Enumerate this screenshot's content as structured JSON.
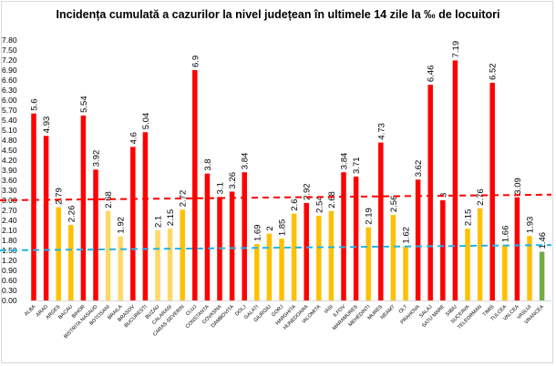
{
  "chart_data": {
    "type": "bar",
    "title": "Incidența cumulată a cazurilor la nivel județean în ultimele 14 zile la ‰ de locuitori",
    "xlabel": "",
    "ylabel": "",
    "ylim": [
      0,
      7.8
    ],
    "ytick_step": 0.3,
    "grid": false,
    "legend": "none",
    "categories": [
      "ALBA",
      "ARAD",
      "ARGES",
      "BACAU",
      "BIHOR",
      "BISTRITA NASAUD",
      "BOTOSANI",
      "BRAILA",
      "BRASOV",
      "BUCURESTI",
      "BUZAU",
      "CALARASI",
      "CARAS-SEVERIN",
      "CLUJ",
      "CONSTANTA",
      "COVASNA",
      "DAMBOVITA",
      "DOLJ",
      "GALATI",
      "GIURGIU",
      "GORJ",
      "HARGHITA",
      "HUNEDOARA",
      "IALOMITA",
      "IASI",
      "ILFOV",
      "MARAMURES",
      "MEHEDINTI",
      "MURES",
      "NEAMT",
      "OLT",
      "PRAHOVA",
      "SALAJ",
      "SATU MARE",
      "SIBIU",
      "SUCEAVA",
      "TELEORMAN",
      "TIMIS",
      "TULCEA",
      "VALCEA",
      "VASLUI",
      "VRANCEA"
    ],
    "values": [
      5.6,
      4.93,
      2.79,
      2.26,
      5.54,
      3.92,
      2.68,
      1.92,
      4.6,
      5.04,
      2.1,
      2.15,
      2.72,
      6.9,
      3.8,
      3.1,
      3.26,
      3.84,
      1.69,
      2,
      1.85,
      2.6,
      2.92,
      2.54,
      2.68,
      3.84,
      3.71,
      2.19,
      4.73,
      2.56,
      1.62,
      3.62,
      6.46,
      3,
      7.19,
      2.15,
      2.76,
      6.52,
      1.66,
      3.09,
      1.93,
      1.46
    ],
    "bar_colors": [
      "red",
      "red",
      "yellow",
      "yellow",
      "red",
      "red",
      "lightyellow",
      "lightyellow",
      "red",
      "red",
      "lightyellow",
      "lightyellow",
      "yellow",
      "red",
      "red",
      "red",
      "red",
      "red",
      "yellow",
      "yellow",
      "yellow",
      "yellow",
      "red",
      "yellow",
      "yellow",
      "red",
      "red",
      "yellow",
      "red",
      "yellow",
      "yellow",
      "red",
      "red",
      "red",
      "red",
      "yellow",
      "yellow",
      "red",
      "yellow",
      "red",
      "yellow",
      "green"
    ],
    "palette": {
      "red": "#FF0000",
      "yellow": "#FFC000",
      "lightyellow": "#FFD966",
      "green": "#70AD47"
    },
    "reference_lines": [
      {
        "color": "#FF0000",
        "style": "dashed",
        "start": 3.0,
        "end": 3.17
      },
      {
        "color": "#1FB4E8",
        "style": "dashed",
        "start": 1.5,
        "end": 1.66
      }
    ]
  }
}
